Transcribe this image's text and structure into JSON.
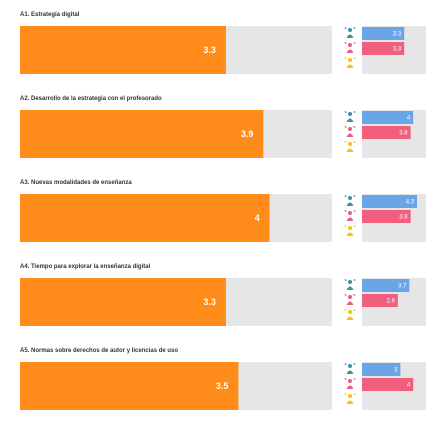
{
  "colors": {
    "main_bar": "#ff8c1a",
    "track": "#e6e6e6",
    "series_blue": "#6aa5e8",
    "series_pink": "#f0607e",
    "icon_teal": "#3f8fa6",
    "icon_pink": "#e85b8a",
    "icon_yellow": "#f1c40f"
  },
  "chart_data": {
    "type": "bar",
    "xlim": [
      0,
      5
    ],
    "categories": [
      "A1. Estrategia digital",
      "A2. Desarrollo de la estrategia con el profesorado",
      "A3. Nuevas modalidades de enseñanza",
      "A4. Tiempo para explorar la enseñanza digital",
      "A5. Normas sobre derechos de autor y licencias de uso"
    ],
    "values": [
      3.3,
      3.9,
      4,
      3.3,
      3.5
    ],
    "value_labels": [
      "3.3",
      "3.9",
      "4",
      "3.3",
      "3.5"
    ],
    "series": [
      {
        "values": [
          3.3,
          4,
          4.3,
          3.7,
          3
        ],
        "labels": [
          "3.3",
          "4",
          "4.3",
          "3.7",
          "3"
        ]
      },
      {
        "values": [
          3.3,
          3.8,
          3.8,
          2.8,
          4
        ],
        "labels": [
          "3.3",
          "3.8",
          "3.8",
          "2.8",
          "4"
        ]
      },
      {
        "values": [
          null,
          null,
          null,
          null,
          null
        ],
        "labels": [
          "",
          "",
          "",
          "",
          ""
        ]
      }
    ],
    "icons": [
      "teal-figure-icon",
      "pink-figure-icon",
      "yellow-figure-icon"
    ]
  }
}
